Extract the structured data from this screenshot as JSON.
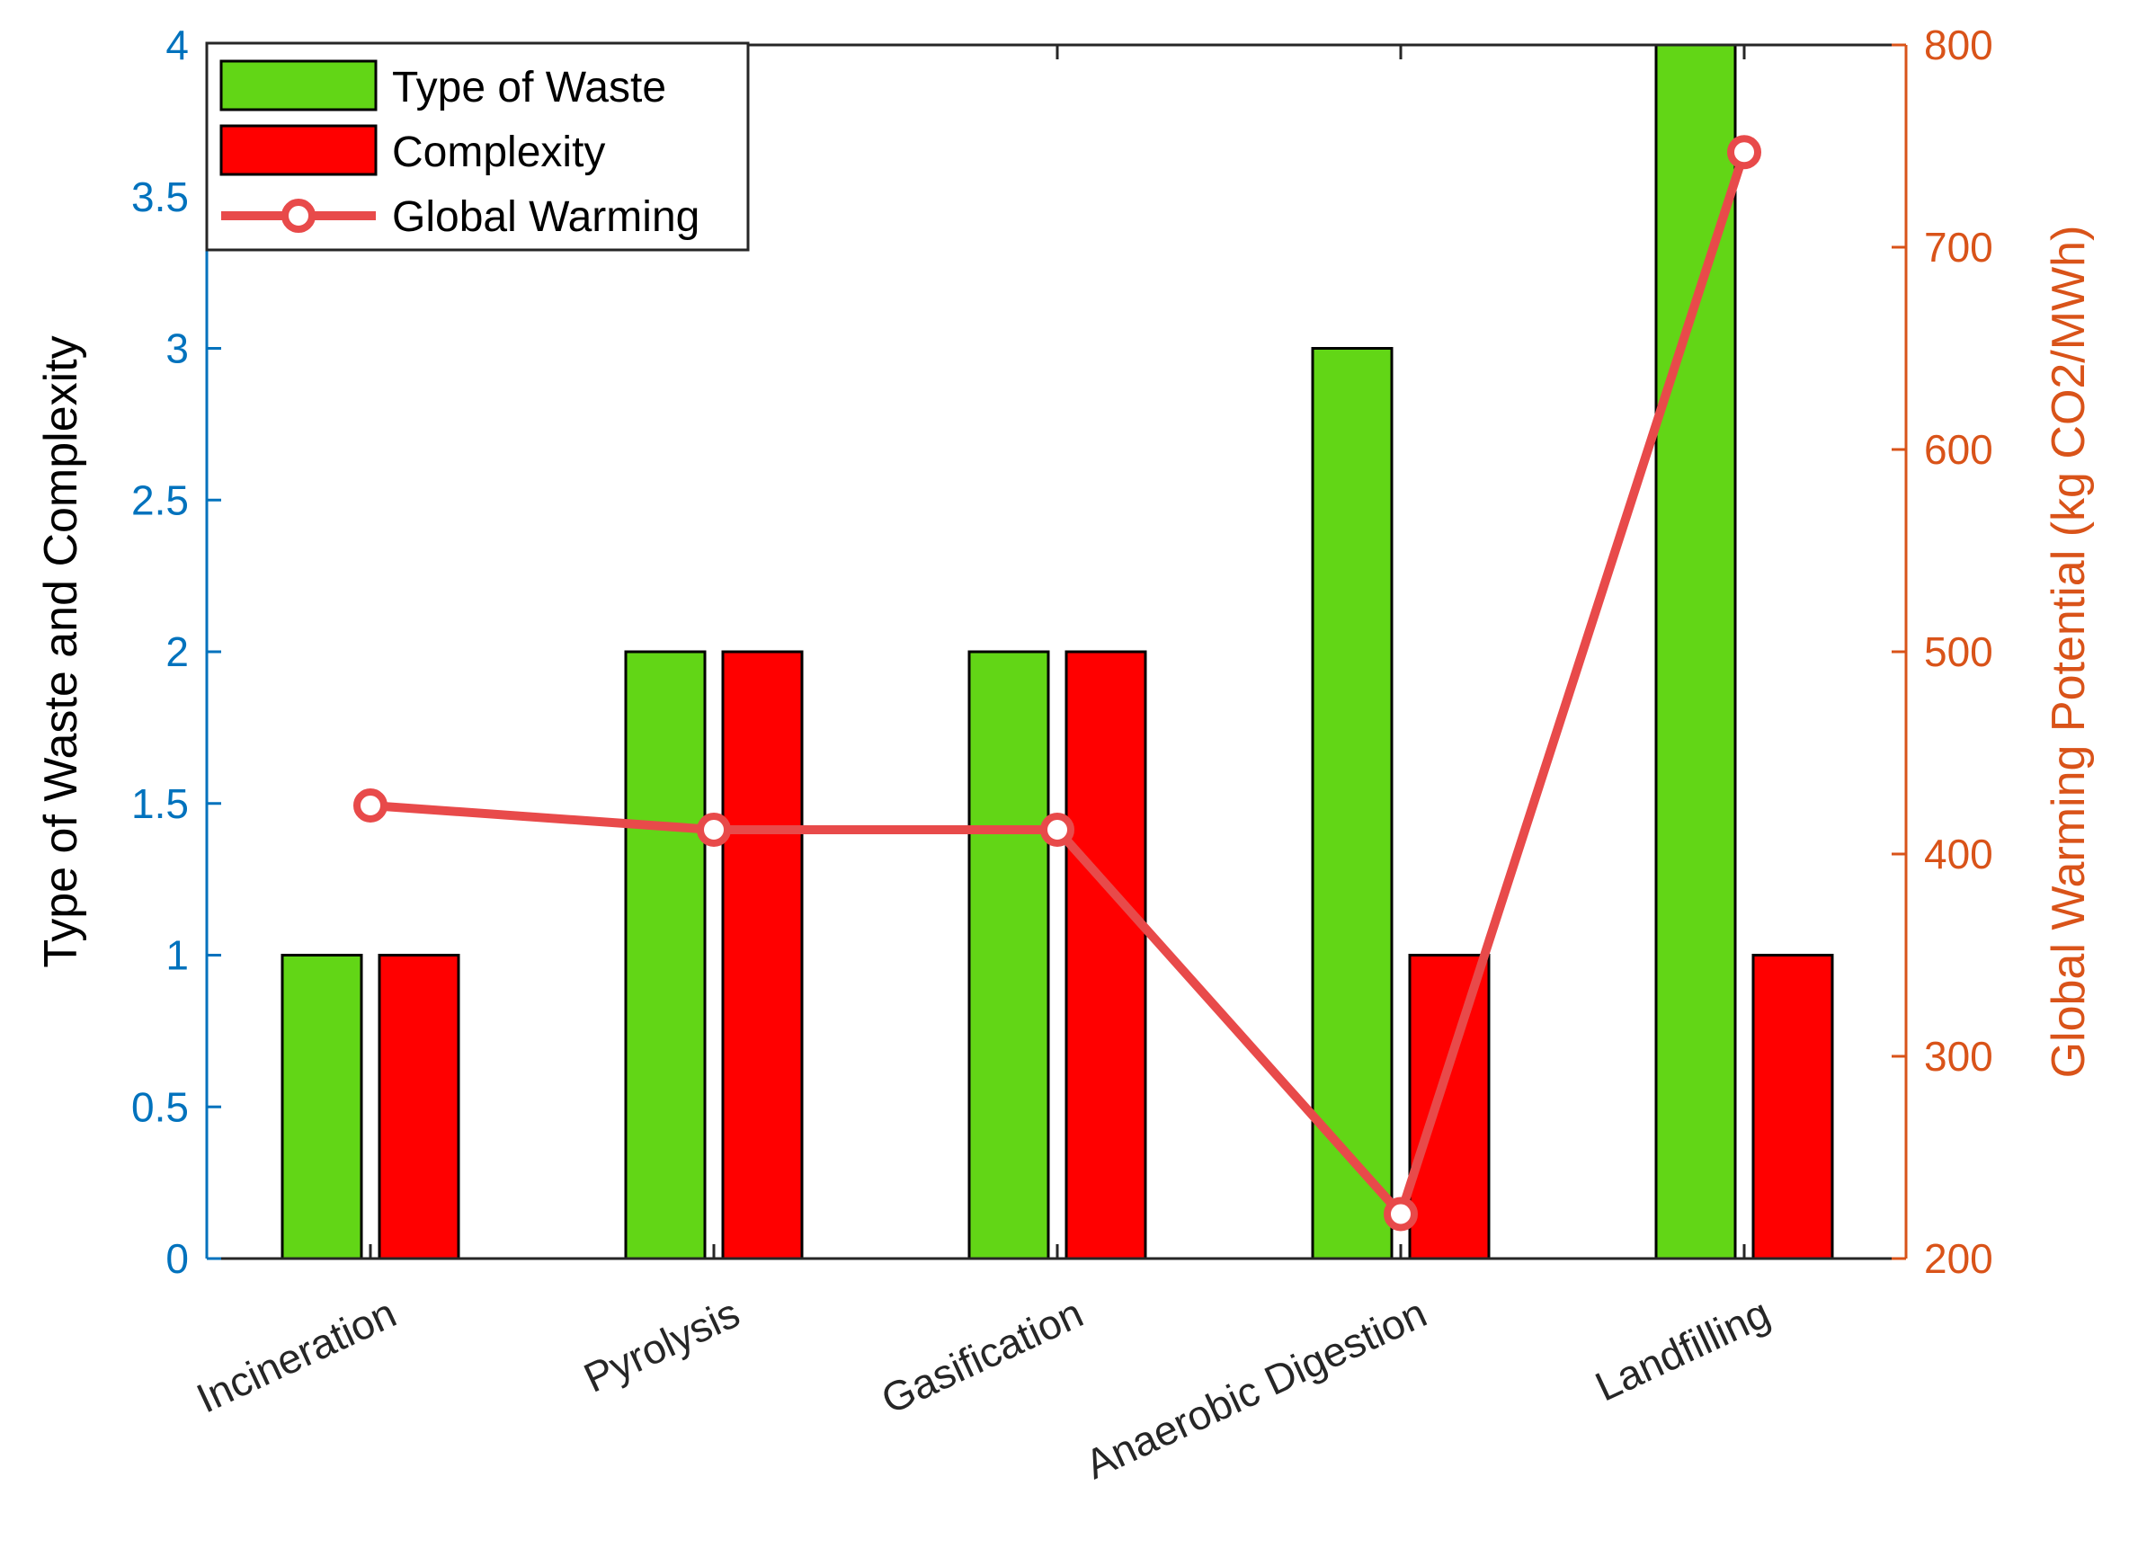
{
  "chart_data": {
    "type": "bar",
    "categories": [
      "Incineration",
      "Pyrolysis",
      "Gasification",
      "Anaerobic Digestion",
      "Landfilling"
    ],
    "series": [
      {
        "name": "Type of Waste",
        "axis": "left",
        "kind": "bar",
        "color": "#62d616",
        "values": [
          1,
          2,
          2,
          3,
          4
        ]
      },
      {
        "name": "Complexity",
        "axis": "left",
        "kind": "bar",
        "color": "#ff0000",
        "values": [
          1,
          2,
          2,
          1,
          1
        ]
      },
      {
        "name": "Global Warming",
        "axis": "right",
        "kind": "line",
        "color": "#e84a4a",
        "marker": "circle",
        "values": [
          424,
          412,
          412,
          222,
          747
        ]
      }
    ],
    "y_left": {
      "label": "Type of Waste and Complexity",
      "ylim": [
        0,
        4
      ],
      "ticks": [
        0,
        0.5,
        1,
        1.5,
        2,
        2.5,
        3,
        3.5,
        4
      ],
      "tick_labels": [
        "0",
        "0.5",
        "1",
        "1.5",
        "2",
        "2.5",
        "3",
        "3.5",
        "4"
      ],
      "color": "#0072bd"
    },
    "y_right": {
      "label": "Global Warming Potential (kg CO2/MWh)",
      "ylim": [
        200,
        800
      ],
      "ticks": [
        200,
        300,
        400,
        500,
        600,
        700,
        800
      ],
      "tick_labels": [
        "200",
        "300",
        "400",
        "500",
        "600",
        "700",
        "800"
      ],
      "color": "#d95319"
    },
    "legend": {
      "position": "top-left",
      "entries": [
        "Type of Waste",
        "Complexity",
        "Global Warming"
      ]
    },
    "grid": false
  }
}
